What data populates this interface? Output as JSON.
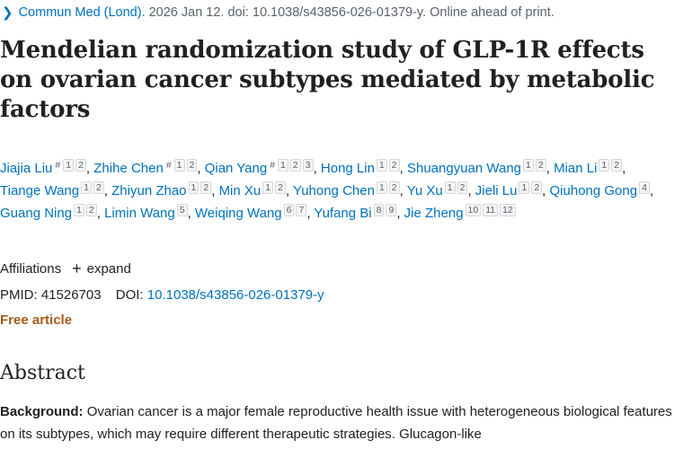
{
  "citation": {
    "journal": "Commun Med (Lond).",
    "details": "2026 Jan 12. doi: 10.1038/s43856-026-01379-y. Online ahead of print."
  },
  "title": "Mendelian randomization study of GLP-1R effects on ovarian cancer subtypes mediated by metabolic factors",
  "authors": [
    {
      "name": "Jiajia Liu",
      "sups": [
        "#",
        "1",
        "2"
      ]
    },
    {
      "name": "Zhihe Chen",
      "sups": [
        "#",
        "1",
        "2"
      ]
    },
    {
      "name": "Qian Yang",
      "sups": [
        "#",
        "1",
        "2",
        "3"
      ]
    },
    {
      "name": "Hong Lin",
      "sups": [
        "1",
        "2"
      ]
    },
    {
      "name": "Shuangyuan Wang",
      "sups": [
        "1",
        "2"
      ]
    },
    {
      "name": "Mian Li",
      "sups": [
        "1",
        "2"
      ]
    },
    {
      "name": "Tiange Wang",
      "sups": [
        "1",
        "2"
      ]
    },
    {
      "name": "Zhiyun Zhao",
      "sups": [
        "1",
        "2"
      ]
    },
    {
      "name": "Min Xu",
      "sups": [
        "1",
        "2"
      ]
    },
    {
      "name": "Yuhong Chen",
      "sups": [
        "1",
        "2"
      ]
    },
    {
      "name": "Yu Xu",
      "sups": [
        "1",
        "2"
      ]
    },
    {
      "name": "Jieli Lu",
      "sups": [
        "1",
        "2"
      ]
    },
    {
      "name": "Qiuhong Gong",
      "sups": [
        "4"
      ]
    },
    {
      "name": "Guang Ning",
      "sups": [
        "1",
        "2"
      ]
    },
    {
      "name": "Limin Wang",
      "sups": [
        "5"
      ]
    },
    {
      "name": "Weiqing Wang",
      "sups": [
        "6",
        "7"
      ]
    },
    {
      "name": "Yufang Bi",
      "sups": [
        "8",
        "9"
      ]
    },
    {
      "name": "Jie Zheng",
      "sups": [
        "10",
        "11",
        "12"
      ]
    }
  ],
  "affiliations": {
    "label": "Affiliations",
    "expand_label": "expand",
    "expand_icon": "plus-icon"
  },
  "identifiers": {
    "pmid_label": "PMID:",
    "pmid": "41526703",
    "doi_label": "DOI:",
    "doi": "10.1038/s43856-026-01379-y"
  },
  "free_label": "Free article",
  "abstract": {
    "heading": "Abstract",
    "background_label": "Background:",
    "background_text": "Ovarian cancer is a major female reproductive health issue with heterogeneous biological features on its subtypes, which may require different therapeutic strategies. Glucagon-like"
  },
  "colors": {
    "link": "#0071bc",
    "free_article": "#a5591a",
    "text": "#212121",
    "muted": "#5b616b"
  }
}
